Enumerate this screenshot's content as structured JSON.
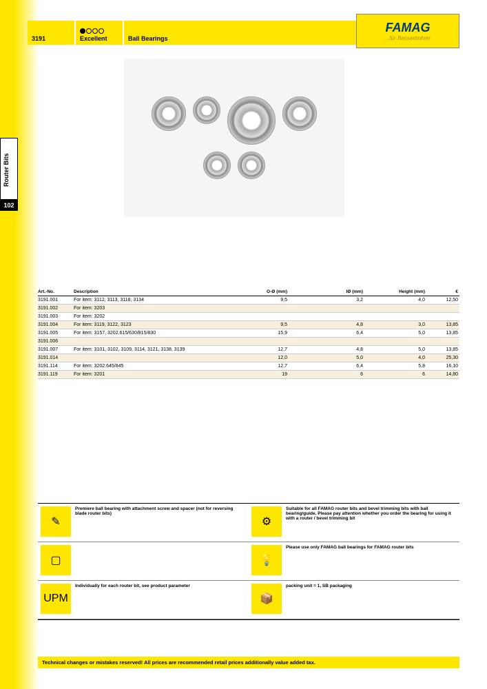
{
  "sidebar": {
    "label": "Router Bits",
    "page_num": "102"
  },
  "header": {
    "code": "3191",
    "grade": "Excellent",
    "title": "Ball Bearings"
  },
  "logo": {
    "main": "FAMAG",
    "sub": "...für Besserbohrer"
  },
  "table": {
    "headers": {
      "art": "Art.-No.",
      "desc": "Description",
      "od": "O-Ø\n(mm)",
      "id": "IØ\n(mm)",
      "h": "Height\n(mm)",
      "eur": "€"
    },
    "rows": [
      {
        "art": "3191.001",
        "desc": "For item: 3112, 3113, 3118, 3134",
        "od": "9,5",
        "id": "3,2",
        "h": "4,0",
        "eur": "12,50"
      },
      {
        "art": "3191.002",
        "desc": "For item: 3203",
        "od": "",
        "id": "",
        "h": "",
        "eur": ""
      },
      {
        "art": "3191.003",
        "desc": "For item: 3202",
        "od": "",
        "id": "",
        "h": "",
        "eur": ""
      },
      {
        "art": "3191.004",
        "desc": "For item: 3119, 3122, 3123",
        "od": "9,5",
        "id": "4,8",
        "h": "3,0",
        "eur": "13,85"
      },
      {
        "art": "3191.005",
        "desc": "For item: 3157, 3202.615/630/815/830",
        "od": "15,9",
        "id": "6,4",
        "h": "5,0",
        "eur": "13,85"
      },
      {
        "art": "3191.006",
        "desc": "",
        "od": "",
        "id": "",
        "h": "",
        "eur": ""
      },
      {
        "art": "3191.007",
        "desc": "For item: 3101, 3102, 3109, 3114, 3121, 3138, 3139",
        "od": "12,7",
        "id": "4,8",
        "h": "5,0",
        "eur": "13,85"
      },
      {
        "art": "3191.014",
        "desc": "",
        "od": "12,0",
        "id": "5,0",
        "h": "4,0",
        "eur": "25,30"
      },
      {
        "art": "3191.114",
        "desc": "For item: 3202.645/845",
        "od": "12,7",
        "id": "6,4",
        "h": "5,8",
        "eur": "16,10"
      },
      {
        "art": "3191.119",
        "desc": "For item: 3201",
        "od": "19",
        "id": "6",
        "h": "6",
        "eur": "14,80"
      }
    ]
  },
  "features": [
    [
      {
        "icon": "screw-icon",
        "text": "Premiere ball bearing with attachment screw and spacer (not for reversing blade router bits)"
      },
      {
        "icon": "drill-icon",
        "text": "Suitable for all FAMAG router bits and bevel trimming bits with ball bearing/guide. Please pay attention whether you order the bearing for using it with a router / bevel trimming bit"
      }
    ],
    [
      {
        "icon": "cube-icon",
        "text": ""
      },
      {
        "icon": "bulb-icon",
        "text": "Please use only FAMAG ball bearings for FAMAG router bits"
      }
    ],
    [
      {
        "icon": "upm-icon",
        "text": "Individually for each router bit, see product parameter"
      },
      {
        "icon": "box-icon",
        "text": "packing unit = 1, SB packaging"
      }
    ]
  ],
  "footer": "Technical changes or mistakes reserved! All prices are recommended retail prices additionally value added tax.",
  "icons": {
    "upm": "UPM"
  },
  "colors": {
    "yellow": "#ffe600",
    "blue": "#003b7a"
  }
}
